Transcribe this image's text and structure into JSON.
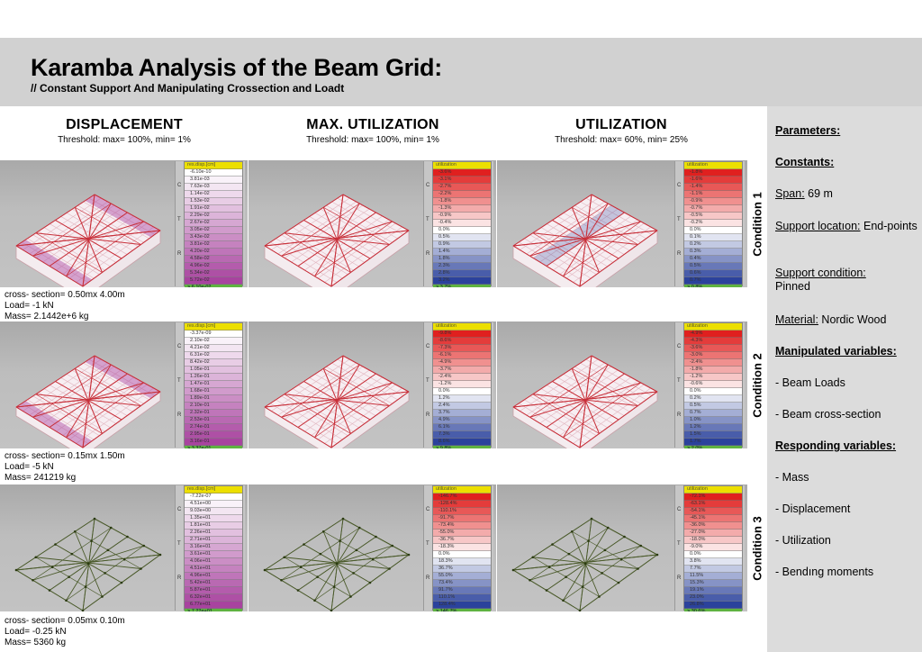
{
  "header": {
    "title": "Karamba Analysis of the Beam Grid:",
    "subtitle": "// Constant Support And Manipulating Crossection and Loadt"
  },
  "columns": [
    {
      "heading": "DISPLACEMENT",
      "threshold": "Threshold: max= 100%, min= 1%"
    },
    {
      "heading": "MAX. UTILIZATION",
      "threshold": "Threshold: max= 100%, min= 1%"
    },
    {
      "heading": "UTILIZATION",
      "threshold": "Threshold: max= 60%, min= 25%"
    }
  ],
  "legend_side_labels": [
    "C",
    "T",
    "R"
  ],
  "colors": {
    "legend_header": "#ecdf00",
    "legend_footer": "#5fb341",
    "disp_max": "#a8439f",
    "util_neg": "#e0201f",
    "util_pos": "#2b429c",
    "beam_cond3": "#4a5a2a"
  },
  "conditions": [
    {
      "label": "Condition 1",
      "cross_section": "cross- section= 0.50mx 4.00m",
      "load": "Load= -1 kN",
      "mass": "Mass= 2.1442e+6 kg",
      "legends": [
        {
          "title": "res.disp.[cm]",
          "type": "disp",
          "values": [
            "-6.10e-10",
            "3.81e-03",
            "7.63e-03",
            "1.14e-02",
            "1.53e-02",
            "1.91e-02",
            "2.29e-02",
            "2.67e-02",
            "3.05e-02",
            "3.43e-02",
            "3.81e-02",
            "4.20e-02",
            "4.58e-02",
            "4.96e-02",
            "5.34e-02",
            "5.72e-02"
          ],
          "footer": ">  6.10e-02"
        },
        {
          "title": "utilization",
          "type": "util",
          "values": [
            "-3.6%",
            "-3.1%",
            "-2.7%",
            "-2.2%",
            "-1.8%",
            "-1.3%",
            "-0.9%",
            "-0.4%",
            "0.0%",
            "0.5%",
            "0.9%",
            "1.4%",
            "1.8%",
            "2.3%",
            "2.8%",
            "3.2%"
          ],
          "footer": ">    3.7%"
        },
        {
          "title": "utilization",
          "type": "util",
          "values": [
            "-1.8%",
            "-1.6%",
            "-1.4%",
            "-1.1%",
            "-0.9%",
            "-0.7%",
            "-0.5%",
            "-0.2%",
            "0.0%",
            "0.1%",
            "0.2%",
            "0.3%",
            "0.4%",
            "0.5%",
            "0.6%",
            "0.7%"
          ],
          "footer": ">    0.8%"
        }
      ]
    },
    {
      "label": "Condition 2",
      "cross_section": "cross- section= 0.15mx 1.50m",
      "load": "Load= -5 kN",
      "mass": "Mass= 241219 kg",
      "legends": [
        {
          "title": "res.disp.[cm]",
          "type": "disp",
          "values": [
            "-3.37e-09",
            "2.10e-02",
            "4.21e-02",
            "6.31e-02",
            "8.42e-02",
            "1.05e-01",
            "1.26e-01",
            "1.47e-01",
            "1.68e-01",
            "1.89e-01",
            "2.10e-01",
            "2.32e-01",
            "2.53e-01",
            "2.74e-01",
            "2.95e-01",
            "3.16e-01"
          ],
          "footer": ">  3.37e-01"
        },
        {
          "title": "utilization",
          "type": "util",
          "values": [
            "-9.8%",
            "-8.6%",
            "-7.3%",
            "-6.1%",
            "-4.9%",
            "-3.7%",
            "-2.4%",
            "-1.2%",
            "0.0%",
            "1.2%",
            "2.4%",
            "3.7%",
            "4.9%",
            "6.1%",
            "7.3%",
            "8.6%"
          ],
          "footer": ">    9.8%"
        },
        {
          "title": "utilization",
          "type": "util",
          "values": [
            "-4.9%",
            "-4.3%",
            "-3.6%",
            "-3.0%",
            "-2.4%",
            "-1.8%",
            "-1.2%",
            "-0.6%",
            "0.0%",
            "0.2%",
            "0.5%",
            "0.7%",
            "1.0%",
            "1.2%",
            "1.5%",
            "1.7%"
          ],
          "footer": ">    2.0%"
        }
      ]
    },
    {
      "label": "Condition 3",
      "cross_section": "cross- section= 0.05mx 0.10m",
      "load": "Load= -0.25 kN",
      "mass": "Mass= 5360 kg",
      "legends": [
        {
          "title": "res.disp.[cm]",
          "type": "disp",
          "values": [
            "-7.22e-07",
            "4.51e+00",
            "9.03e+00",
            "1.35e+01",
            "1.81e+01",
            "2.26e+01",
            "2.71e+01",
            "3.16e+01",
            "3.61e+01",
            "4.06e+01",
            "4.51e+01",
            "4.96e+01",
            "5.42e+01",
            "5.87e+01",
            "6.32e+01",
            "6.77e+01"
          ],
          "footer": ">  7.22e+01"
        },
        {
          "title": "utilization",
          "type": "util",
          "values": [
            "-146.7%",
            "-128.4%",
            "-110.1%",
            "-91.7%",
            "-73.4%",
            "-55.0%",
            "-36.7%",
            "-18.3%",
            "0.0%",
            "18.3%",
            "36.7%",
            "55.0%",
            "73.4%",
            "91.7%",
            "110.1%",
            "128.4%"
          ],
          "footer": ">   146.7%"
        },
        {
          "title": "utilization",
          "type": "util",
          "values": [
            "-72.1%",
            "-63.1%",
            "-54.1%",
            "-45.1%",
            "-36.0%",
            "-27.0%",
            "-18.0%",
            "-9.0%",
            "0.0%",
            "3.8%",
            "7.7%",
            "11.5%",
            "15.3%",
            "19.1%",
            "23.0%",
            "26.8%"
          ],
          "footer": ">    30.6%"
        }
      ]
    }
  ],
  "sidebar": {
    "parameters": "Parameters:",
    "constants": "Constants:",
    "span_label": "Span:",
    "span_value": " 69 m",
    "support_location_label": "Support locatıon:",
    "support_location_value": " End-points",
    "support_condition_label": "Support condition:",
    "support_condition_value": "Pinned",
    "material_label": "Material:",
    "material_value": " Nordic Wood",
    "manipulated": "Manipulated variables:",
    "manipulated_items": [
      "- Beam Loads",
      "- Beam cross-section"
    ],
    "responding": "Responding variables:",
    "responding_items": [
      "- Mass",
      "- Displacement",
      "- Utilization",
      "- Bendıng moments"
    ]
  }
}
